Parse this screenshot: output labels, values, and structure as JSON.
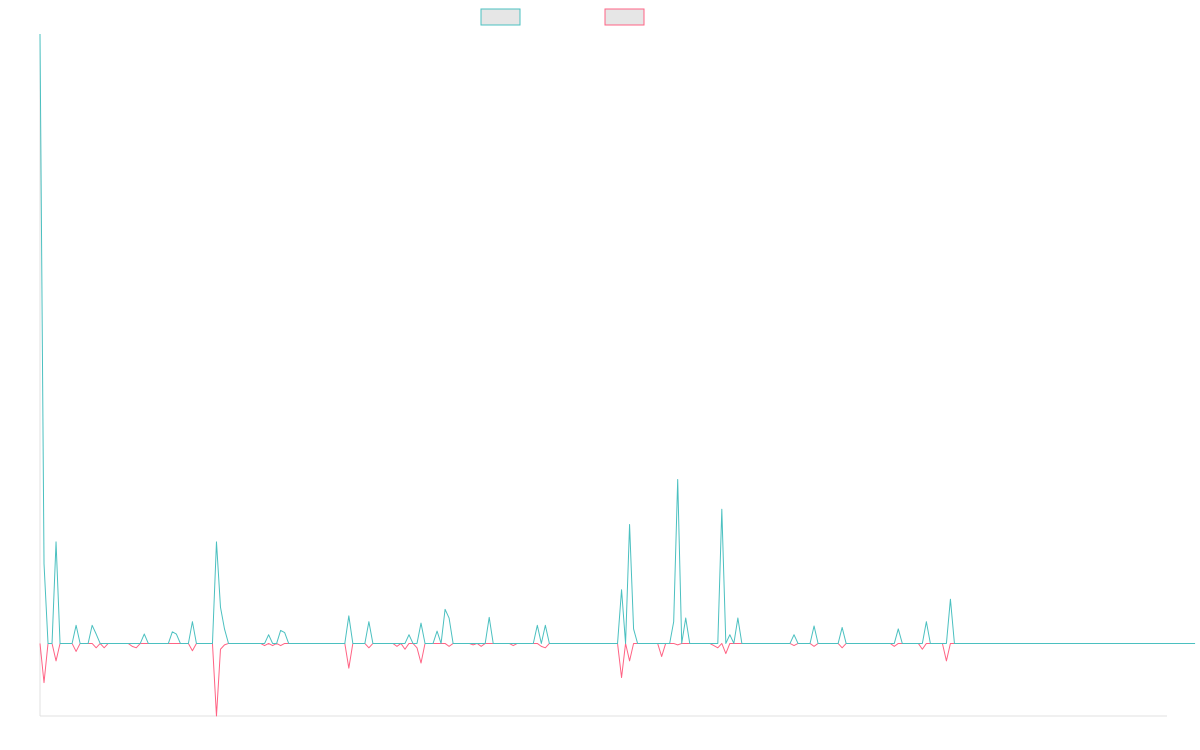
{
  "chart_data": {
    "type": "line",
    "title": "",
    "xlabel": "",
    "ylabel": "",
    "legend": {
      "position": "top",
      "show_labels": false
    },
    "colors": {
      "series_a": "#4bc0c0",
      "series_b": "#ff6384",
      "axis": "#e0e0e0",
      "legend_fill": "#e6e6e6"
    },
    "ylim": [
      -10,
      84
    ],
    "x_count": 282,
    "series": [
      {
        "values": [
          84,
          11,
          0,
          0,
          14,
          0,
          0,
          0,
          0,
          2.5,
          0,
          0,
          0,
          2.5,
          1.3,
          0,
          0,
          0,
          0,
          0,
          0,
          0,
          0,
          0,
          0,
          0,
          1.3,
          0,
          0,
          0,
          0,
          0,
          0,
          1.6,
          1.3,
          0,
          0,
          0,
          3,
          0,
          0,
          0,
          0,
          0,
          14,
          5,
          2,
          0,
          0,
          0,
          0,
          0,
          0,
          0,
          0,
          0,
          0,
          1.2,
          0,
          0,
          1.8,
          1.5,
          0,
          0,
          0,
          0,
          0,
          0,
          0,
          0,
          0,
          0,
          0,
          0,
          0,
          0,
          0,
          3.8,
          0,
          0,
          0,
          0,
          3,
          0,
          0,
          0,
          0,
          0,
          0,
          0,
          0,
          0,
          1.2,
          0,
          0,
          2.8,
          0,
          0,
          0,
          1.7,
          0,
          4.7,
          3.5,
          0,
          0,
          0,
          0,
          0,
          0,
          0,
          0,
          0,
          3.6,
          0,
          0,
          0,
          0,
          0,
          0,
          0,
          0,
          0,
          0,
          0,
          2.5,
          0,
          2.5,
          0,
          0,
          0,
          0,
          0,
          0,
          0,
          0,
          0,
          0,
          0,
          0,
          0,
          0,
          0,
          0,
          0,
          0,
          7.4,
          0,
          16.4,
          2,
          0,
          0,
          0,
          0,
          0,
          0,
          0,
          0,
          0,
          3,
          22.6,
          0,
          3.5,
          0,
          0,
          0,
          0,
          0,
          0,
          0,
          0,
          18.5,
          0,
          1.2,
          0,
          3.5,
          0,
          0,
          0,
          0,
          0,
          0,
          0,
          0,
          0,
          0,
          0,
          0,
          0,
          1.2,
          0,
          0,
          0,
          0,
          2.4,
          0,
          0,
          0,
          0,
          0,
          0,
          2.2,
          0,
          0,
          0,
          0,
          0,
          0,
          0,
          0,
          0,
          0,
          0,
          0,
          0,
          2,
          0,
          0,
          0,
          0,
          0,
          0,
          3,
          0,
          0,
          0,
          0,
          0,
          6.1,
          0,
          0,
          0,
          0,
          0,
          0,
          0,
          0,
          0,
          0,
          0,
          0,
          0,
          0,
          0,
          0,
          0,
          0,
          0,
          0,
          0,
          0,
          0,
          0,
          0,
          0,
          0,
          0,
          0,
          0,
          0,
          0,
          0,
          0,
          0,
          0,
          0,
          0,
          0,
          0,
          0,
          0,
          0,
          0,
          0,
          0,
          0,
          0,
          0,
          0,
          0,
          0,
          0,
          0,
          0,
          0,
          0,
          0,
          0,
          0,
          0
        ]
      },
      {
        "values": [
          0,
          -5.4,
          0,
          0,
          -2.4,
          0,
          0,
          0,
          0,
          -1.1,
          0,
          0,
          0,
          0,
          -0.6,
          0,
          -0.6,
          0,
          0,
          0,
          0,
          0,
          0,
          -0.4,
          -0.6,
          0,
          0,
          0,
          0,
          0,
          0,
          0,
          0,
          0,
          0,
          0,
          0,
          0,
          -1,
          0,
          0,
          0,
          0,
          0,
          -10,
          -0.8,
          -0.2,
          0,
          0,
          0,
          0,
          0,
          0,
          0,
          0,
          0,
          -0.3,
          0,
          -0.3,
          0,
          -0.3,
          0,
          0,
          0,
          0,
          0,
          0,
          0,
          0,
          0,
          0,
          0,
          0,
          0,
          0,
          0,
          0,
          -3.4,
          0,
          0,
          0,
          0,
          -0.6,
          0,
          0,
          0,
          0,
          0,
          0,
          -0.4,
          0,
          -0.8,
          0,
          0,
          -0.6,
          -2.7,
          0,
          0,
          0,
          0,
          0,
          0,
          -0.4,
          0,
          0,
          0,
          0,
          0,
          -0.2,
          0,
          -0.4,
          0,
          0,
          0,
          0,
          0,
          0,
          0,
          -0.3,
          0,
          0,
          0,
          0,
          0,
          0,
          -0.4,
          -0.6,
          0,
          0,
          0,
          0,
          0,
          0,
          0,
          0,
          0,
          0,
          0,
          0,
          0,
          0,
          0,
          0,
          0,
          0,
          -4.7,
          0,
          -2.4,
          0,
          0,
          0,
          0,
          0,
          0,
          0,
          -1.8,
          0,
          0,
          0,
          -0.2,
          0,
          0,
          0,
          0,
          0,
          0,
          0,
          0,
          -0.3,
          -0.6,
          0,
          -1.4,
          0,
          0,
          0,
          0,
          0,
          0,
          0,
          0,
          0,
          0,
          0,
          0,
          0,
          0,
          0,
          0,
          -0.3,
          0,
          0,
          0,
          0,
          -0.4,
          0,
          0,
          0,
          0,
          0,
          0,
          -0.6,
          0,
          0,
          0,
          0,
          0,
          0,
          0,
          0,
          0,
          0,
          0,
          0,
          -0.4,
          0,
          0,
          0,
          0,
          0,
          0,
          -0.8,
          0,
          0,
          0,
          0,
          0,
          -2.4,
          0,
          0,
          0,
          0,
          0,
          0,
          0,
          0,
          0,
          0,
          0,
          0,
          0,
          0,
          0,
          0,
          0,
          0,
          0,
          0,
          0,
          0,
          0,
          0,
          0,
          0,
          0,
          0,
          0,
          0,
          0,
          0,
          0,
          0,
          0,
          0,
          0,
          0,
          0,
          0,
          0,
          0,
          0,
          0,
          0,
          0,
          0,
          0,
          0,
          0,
          0,
          0,
          0,
          0,
          0,
          0,
          0,
          0,
          0
        ]
      }
    ]
  }
}
